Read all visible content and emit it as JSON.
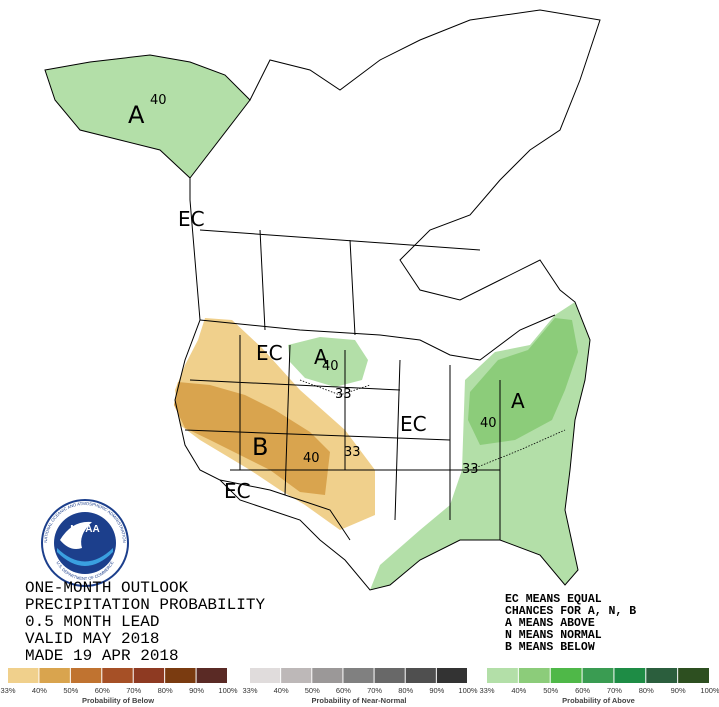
{
  "map_labels": [
    "40",
    "A",
    "EC",
    "EC",
    "A",
    "40",
    "33",
    "B",
    "40",
    "33",
    "EC",
    "A",
    "40",
    "33",
    "EC"
  ],
  "logo": {
    "name": "NOAA",
    "ring_top": "NATIONAL OCEANIC AND ATMOSPHERIC ADMINISTRATION",
    "ring_bottom": "U.S. DEPARTMENT OF COMMERCE"
  },
  "title_block": [
    "ONE-MONTH OUTLOOK",
    "PRECIPITATION PROBABILITY",
    "0.5 MONTH LEAD",
    "VALID MAY 2018",
    "MADE 19 APR 2018"
  ],
  "key": [
    "EC MEANS EQUAL",
    "CHANCES FOR A, N, B",
    "A MEANS ABOVE",
    "N MEANS NORMAL",
    "B MEANS BELOW"
  ],
  "legend": {
    "groups": [
      {
        "caption": "Probability of Below",
        "labels": [
          "33%",
          "40%",
          "50%",
          "60%",
          "70%",
          "80%",
          "90%",
          "100%"
        ],
        "colors": [
          "#f0d08c",
          "#d9a44e",
          "#c07330",
          "#a65026",
          "#8e3a22",
          "#7a3b10",
          "#5a2a25"
        ]
      },
      {
        "caption": "Probability of Near-Normal",
        "labels": [
          "33%",
          "40%",
          "50%",
          "60%",
          "70%",
          "80%",
          "90%",
          "100%"
        ],
        "colors": [
          "#e0dcdc",
          "#bdb8b8",
          "#9b9898",
          "#808080",
          "#686868",
          "#4f4f4f",
          "#333333"
        ]
      },
      {
        "caption": "Probability of Above",
        "labels": [
          "33%",
          "40%",
          "50%",
          "60%",
          "70%",
          "80%",
          "90%",
          "100%"
        ],
        "colors": [
          "#b3dfa8",
          "#8ccc7a",
          "#4fb848",
          "#3a9c52",
          "#1e8c45",
          "#2b5e3d",
          "#2d4f20"
        ]
      }
    ]
  }
}
